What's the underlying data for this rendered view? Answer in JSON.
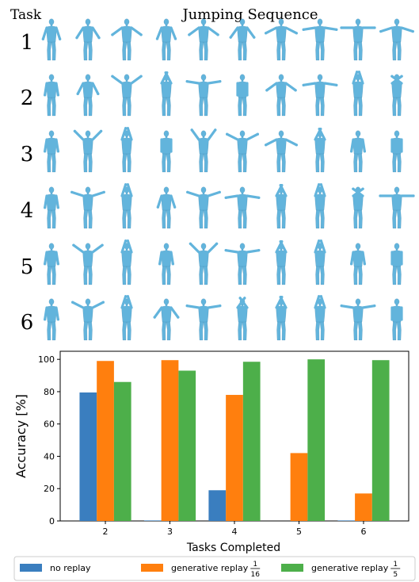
{
  "panel": {
    "task_header": "Task",
    "sequence_title": "Jumping Sequence",
    "task_numbers": [
      "1",
      "2",
      "3",
      "4",
      "5",
      "6"
    ],
    "poses": [
      [
        0.1,
        0.18,
        0.3,
        0.12,
        0.3,
        0.2,
        0.35,
        0.45,
        0.5,
        0.4
      ],
      [
        0.05,
        0.15,
        0.7,
        -0.85,
        0.55,
        0.0,
        0.3,
        0.45,
        -0.9,
        -0.7
      ],
      [
        0.05,
        0.75,
        -0.9,
        0.0,
        0.8,
        0.65,
        0.35,
        -0.85,
        0.05,
        0.0
      ],
      [
        0.05,
        0.6,
        -0.9,
        0.1,
        0.6,
        0.45,
        -0.85,
        -0.9,
        -0.7,
        0.5
      ],
      [
        0.05,
        0.7,
        -0.9,
        0.05,
        0.75,
        0.55,
        -0.85,
        -0.9,
        0.05,
        0.0
      ],
      [
        0.05,
        0.65,
        -0.9,
        0.2,
        0.55,
        -0.8,
        -0.85,
        -0.9,
        0.55,
        0.0
      ]
    ],
    "figure_color": "#62b4dc"
  },
  "chart_data": {
    "type": "bar",
    "categories": [
      "2",
      "3",
      "4",
      "5",
      "6"
    ],
    "series": [
      {
        "name": "no replay",
        "color": "#3a7ebf",
        "values": [
          79.5,
          0.3,
          19,
          0,
          0.3
        ]
      },
      {
        "name": "generative replay",
        "color": "#ff7f0e",
        "values": [
          99,
          99.5,
          78,
          42,
          17
        ]
      },
      {
        "name": "generative replay",
        "color": "#4daf4a",
        "values": [
          86,
          93,
          98.5,
          100,
          99.5
        ]
      }
    ],
    "legend_fractions": [
      {
        "num": "",
        "den": ""
      },
      {
        "num": "1",
        "den": "16"
      },
      {
        "num": "1",
        "den": "5"
      }
    ],
    "xlabel": "Tasks Completed",
    "ylabel": "Accuracy [%]",
    "ylim": [
      0,
      105
    ],
    "yticks": [
      0,
      20,
      40,
      60,
      80,
      100
    ],
    "grid": false,
    "legend_position": "bottom"
  }
}
